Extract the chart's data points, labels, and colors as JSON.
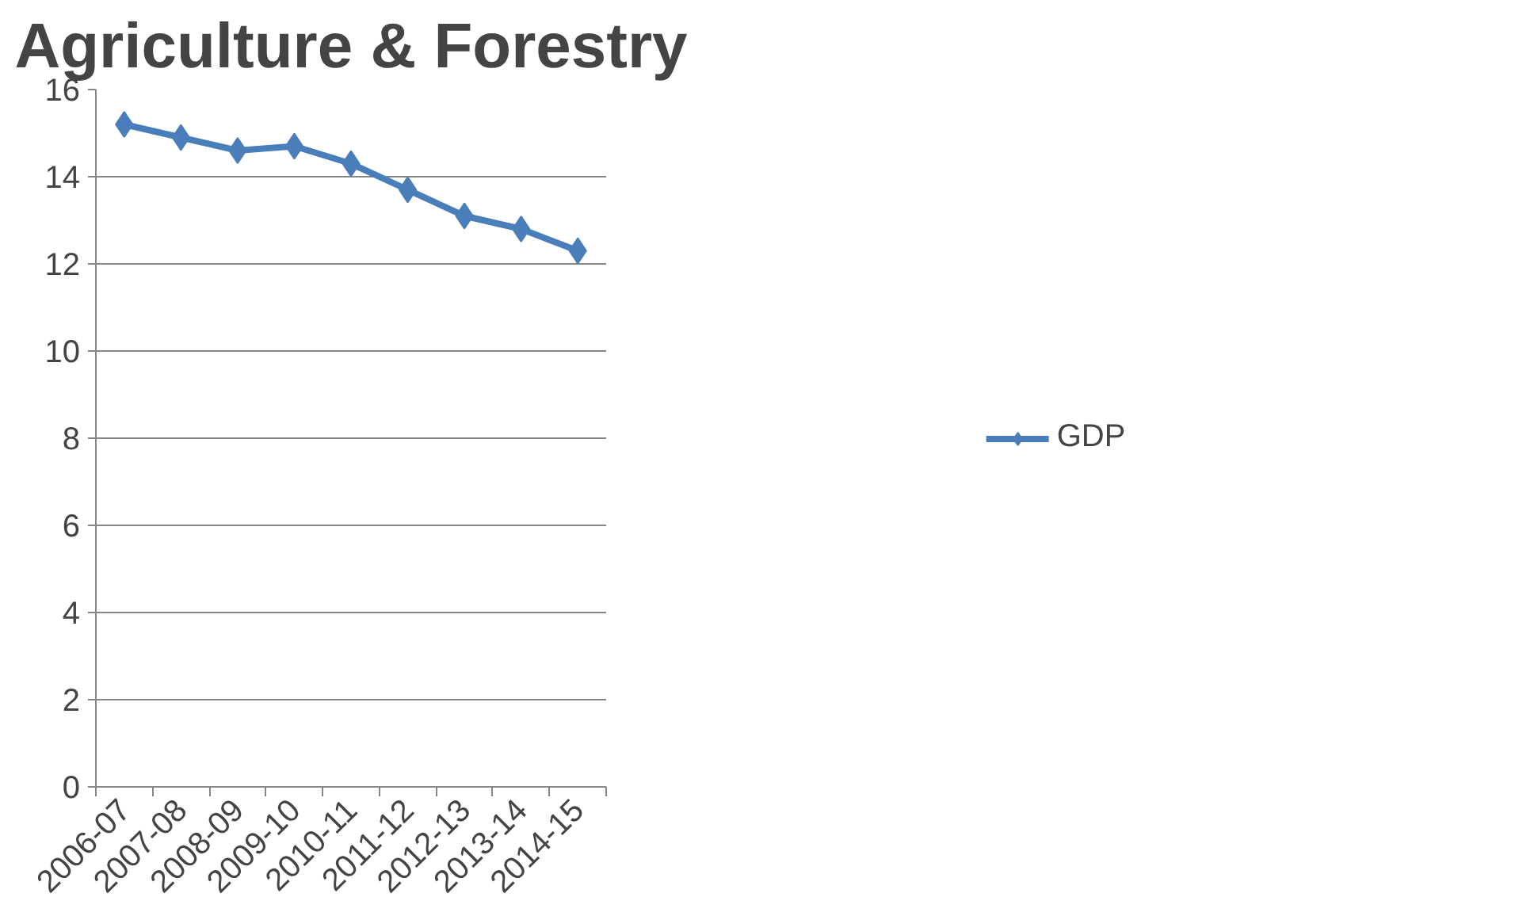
{
  "chart_data": {
    "type": "line",
    "title": "Agriculture & Forestry",
    "categories": [
      "2006-07",
      "2007-08",
      "2008-09",
      "2009-10",
      "2010-11",
      "2011-12",
      "2012-13",
      "2013-14",
      "2014-15"
    ],
    "series": [
      {
        "name": "GDP",
        "color": "#4a7ebb",
        "values": [
          15.2,
          14.9,
          14.6,
          14.7,
          14.3,
          13.7,
          13.1,
          12.8,
          12.3
        ]
      }
    ],
    "ylim": [
      0,
      16
    ],
    "yticks": [
      0,
      2,
      4,
      6,
      8,
      10,
      12,
      14,
      16
    ],
    "grid": "y",
    "legend": "right",
    "marker": "diamond",
    "line_style": "solid"
  }
}
